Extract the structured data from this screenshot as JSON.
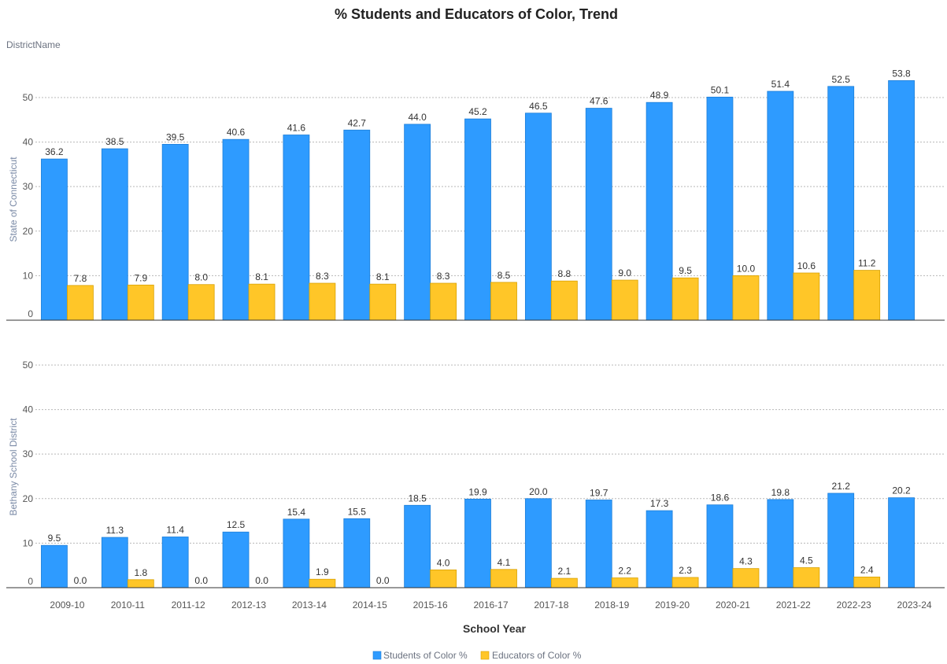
{
  "chart_data": {
    "type": "bar",
    "title": "% Students and Educators of Color, Trend",
    "facet_header": "DistrictName",
    "xlabel": "School Year",
    "categories": [
      "2009-10",
      "2010-11",
      "2011-12",
      "2012-13",
      "2013-14",
      "2014-15",
      "2015-16",
      "2016-17",
      "2017-18",
      "2018-19",
      "2019-20",
      "2020-21",
      "2021-22",
      "2022-23",
      "2023-24"
    ],
    "ylim": [
      0,
      56
    ],
    "yticks": [
      0,
      10,
      20,
      30,
      40,
      50
    ],
    "grid": true,
    "legend_position": "bottom",
    "series_info": [
      {
        "name": "Students of Color %",
        "color": "#2e9bff"
      },
      {
        "name": "Educators of Color %",
        "color": "#ffc628"
      }
    ],
    "panels": [
      {
        "name": "State of Connecticut",
        "series": [
          {
            "name": "Students of Color %",
            "values": [
              36.2,
              38.5,
              39.5,
              40.6,
              41.6,
              42.7,
              44.0,
              45.2,
              46.5,
              47.6,
              48.9,
              50.1,
              51.4,
              52.5,
              53.8
            ],
            "labels": [
              "36.2",
              "38.5",
              "39.5",
              "40.6",
              "41.6",
              "42.7",
              "44.0",
              "45.2",
              "46.5",
              "47.6",
              "48.9",
              "50.1",
              "51.4",
              "52.5",
              "53.8"
            ]
          },
          {
            "name": "Educators of Color %",
            "values": [
              7.8,
              7.9,
              8.0,
              8.1,
              8.3,
              8.1,
              8.3,
              8.5,
              8.8,
              9.0,
              9.5,
              10.0,
              10.6,
              11.2,
              null
            ],
            "labels": [
              "7.8",
              "7.9",
              "8.0",
              "8.1",
              "8.3",
              "8.1",
              "8.3",
              "8.5",
              "8.8",
              "9.0",
              "9.5",
              "10.0",
              "10.6",
              "11.2",
              null
            ]
          }
        ]
      },
      {
        "name": "Bethany School District",
        "series": [
          {
            "name": "Students of Color %",
            "values": [
              9.5,
              11.3,
              11.4,
              12.5,
              15.4,
              15.5,
              18.5,
              19.9,
              20.0,
              19.7,
              17.3,
              18.6,
              19.8,
              21.2,
              20.2
            ],
            "labels": [
              "9.5",
              "11.3",
              "11.4",
              "12.5",
              "15.4",
              "15.5",
              "18.5",
              "19.9",
              "20.0",
              "19.7",
              "17.3",
              "18.6",
              "19.8",
              "21.2",
              "20.2"
            ]
          },
          {
            "name": "Educators of Color %",
            "values": [
              0.0,
              1.8,
              0.0,
              0.0,
              1.9,
              0.0,
              4.0,
              4.1,
              2.1,
              2.2,
              2.3,
              4.3,
              4.5,
              2.4,
              null
            ],
            "labels": [
              "0.0",
              "1.8",
              "0.0",
              "0.0",
              "1.9",
              "0.0",
              "4.0",
              "4.1",
              "2.1",
              "2.2",
              "2.3",
              "4.3",
              "4.5",
              "2.4",
              null
            ]
          }
        ]
      }
    ]
  }
}
